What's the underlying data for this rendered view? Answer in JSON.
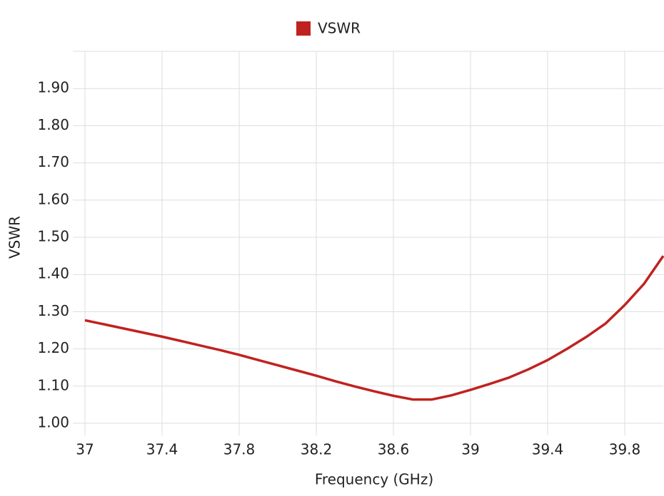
{
  "chart_data": {
    "type": "line",
    "x_label": "Frequency (GHz)",
    "y_label": "VSWR",
    "x": [
      37.0,
      37.1,
      37.2,
      37.3,
      37.4,
      37.5,
      37.6,
      37.7,
      37.8,
      37.9,
      38.0,
      38.1,
      38.2,
      38.3,
      38.4,
      38.5,
      38.6,
      38.7,
      38.8,
      38.9,
      39.0,
      39.1,
      39.2,
      39.3,
      39.4,
      39.5,
      39.6,
      39.7,
      39.8,
      39.9,
      40.0
    ],
    "series": [
      {
        "name": "VSWR",
        "color": "#c0221f",
        "values": [
          1.277,
          1.266,
          1.255,
          1.244,
          1.233,
          1.221,
          1.209,
          1.197,
          1.184,
          1.17,
          1.156,
          1.142,
          1.128,
          1.113,
          1.099,
          1.086,
          1.074,
          1.064,
          1.064,
          1.075,
          1.09,
          1.106,
          1.123,
          1.145,
          1.17,
          1.2,
          1.232,
          1.268,
          1.318,
          1.375,
          1.45
        ]
      }
    ],
    "xlim": [
      37,
      40
    ],
    "xticks": [
      37,
      37.4,
      37.8,
      38.2,
      38.6,
      39,
      39.4,
      39.8
    ],
    "ylim": [
      1.0,
      2.0
    ],
    "yticks": [
      {
        "value": 1.0,
        "label": "1.00"
      },
      {
        "value": 1.1,
        "label": "1.10"
      },
      {
        "value": 1.2,
        "label": "1.20"
      },
      {
        "value": 1.3,
        "label": "1.30"
      },
      {
        "value": 1.4,
        "label": "1.40"
      },
      {
        "value": 1.5,
        "label": "1.50"
      },
      {
        "value": 1.6,
        "label": "1.60"
      },
      {
        "value": 1.7,
        "label": "1.70"
      },
      {
        "value": 1.8,
        "label": "1.80"
      },
      {
        "value": 1.9,
        "label": "1.90"
      }
    ],
    "grid": true,
    "legend": "top"
  }
}
